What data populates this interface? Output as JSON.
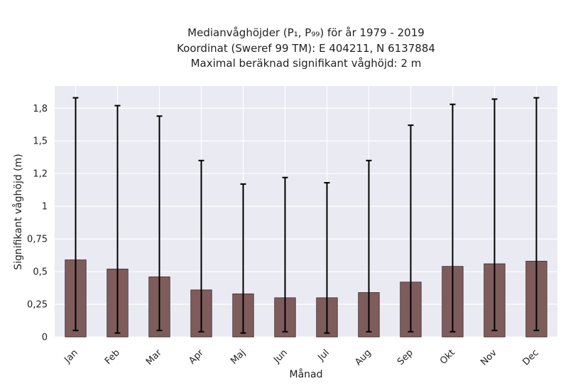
{
  "chart_data": {
    "type": "bar",
    "title_lines": [
      "Medianvåghöjder (P₁, P₉₉) för år 1979 - 2019",
      "Koordinat (Sweref 99 TM): E 404211, N 6137884",
      "Maximal beräknad signifikant våghöjd: 2 m"
    ],
    "xlabel": "Månad",
    "ylabel": "Signifikant våghöjd (m)",
    "categories": [
      "Jan",
      "Feb",
      "Mar",
      "Apr",
      "Maj",
      "Jun",
      "Jul",
      "Aug",
      "Sep",
      "Okt",
      "Nov",
      "Dec"
    ],
    "values": [
      0.59,
      0.52,
      0.46,
      0.36,
      0.33,
      0.3,
      0.3,
      0.34,
      0.42,
      0.54,
      0.56,
      0.58
    ],
    "error_low": [
      0.05,
      0.03,
      0.05,
      0.04,
      0.03,
      0.04,
      0.03,
      0.04,
      0.04,
      0.04,
      0.05,
      0.05
    ],
    "error_high": [
      1.83,
      1.77,
      1.69,
      1.35,
      1.17,
      1.22,
      1.18,
      1.35,
      1.62,
      1.78,
      1.82,
      1.83
    ],
    "yticks": [
      0,
      0.25,
      0.5,
      0.75,
      1,
      1.25,
      1.5,
      1.75
    ],
    "ytick_labels": [
      "0",
      "0,25",
      "0,5",
      "0,75",
      "1",
      "1,2",
      "1,5",
      "1,8"
    ],
    "ylim": [
      0,
      1.92
    ],
    "grid": true,
    "colors": {
      "bar": "#7f5c5c",
      "bar_edge": "#3a2a2a",
      "error": "#000000",
      "plot_bg": "#eaeaf2",
      "grid": "#ffffff"
    }
  }
}
